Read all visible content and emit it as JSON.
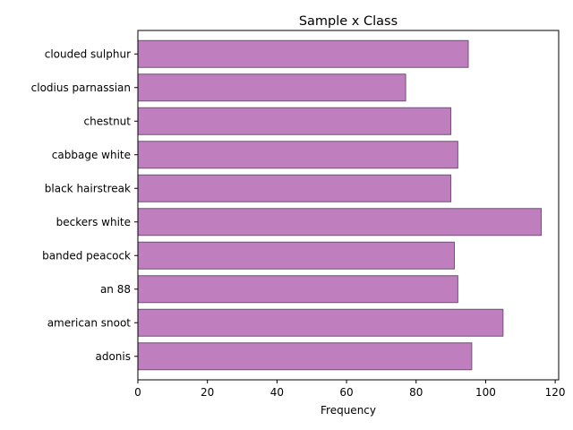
{
  "chart_data": {
    "type": "bar",
    "orientation": "horizontal",
    "title": "Sample x Class",
    "xlabel": "Frequency",
    "ylabel": "",
    "categories": [
      "adonis",
      "american snoot",
      "an 88",
      "banded peacock",
      "beckers white",
      "black hairstreak",
      "cabbage white",
      "chestnut",
      "clodius parnassian",
      "clouded sulphur"
    ],
    "values": [
      96,
      105,
      92,
      91,
      116,
      90,
      92,
      90,
      77,
      95
    ],
    "xlim": [
      0,
      121
    ],
    "xticks": [
      0,
      20,
      40,
      60,
      80,
      100,
      120
    ],
    "grid": false,
    "bar_color": "#bf7fbf",
    "edge_color": "#6b5470"
  }
}
